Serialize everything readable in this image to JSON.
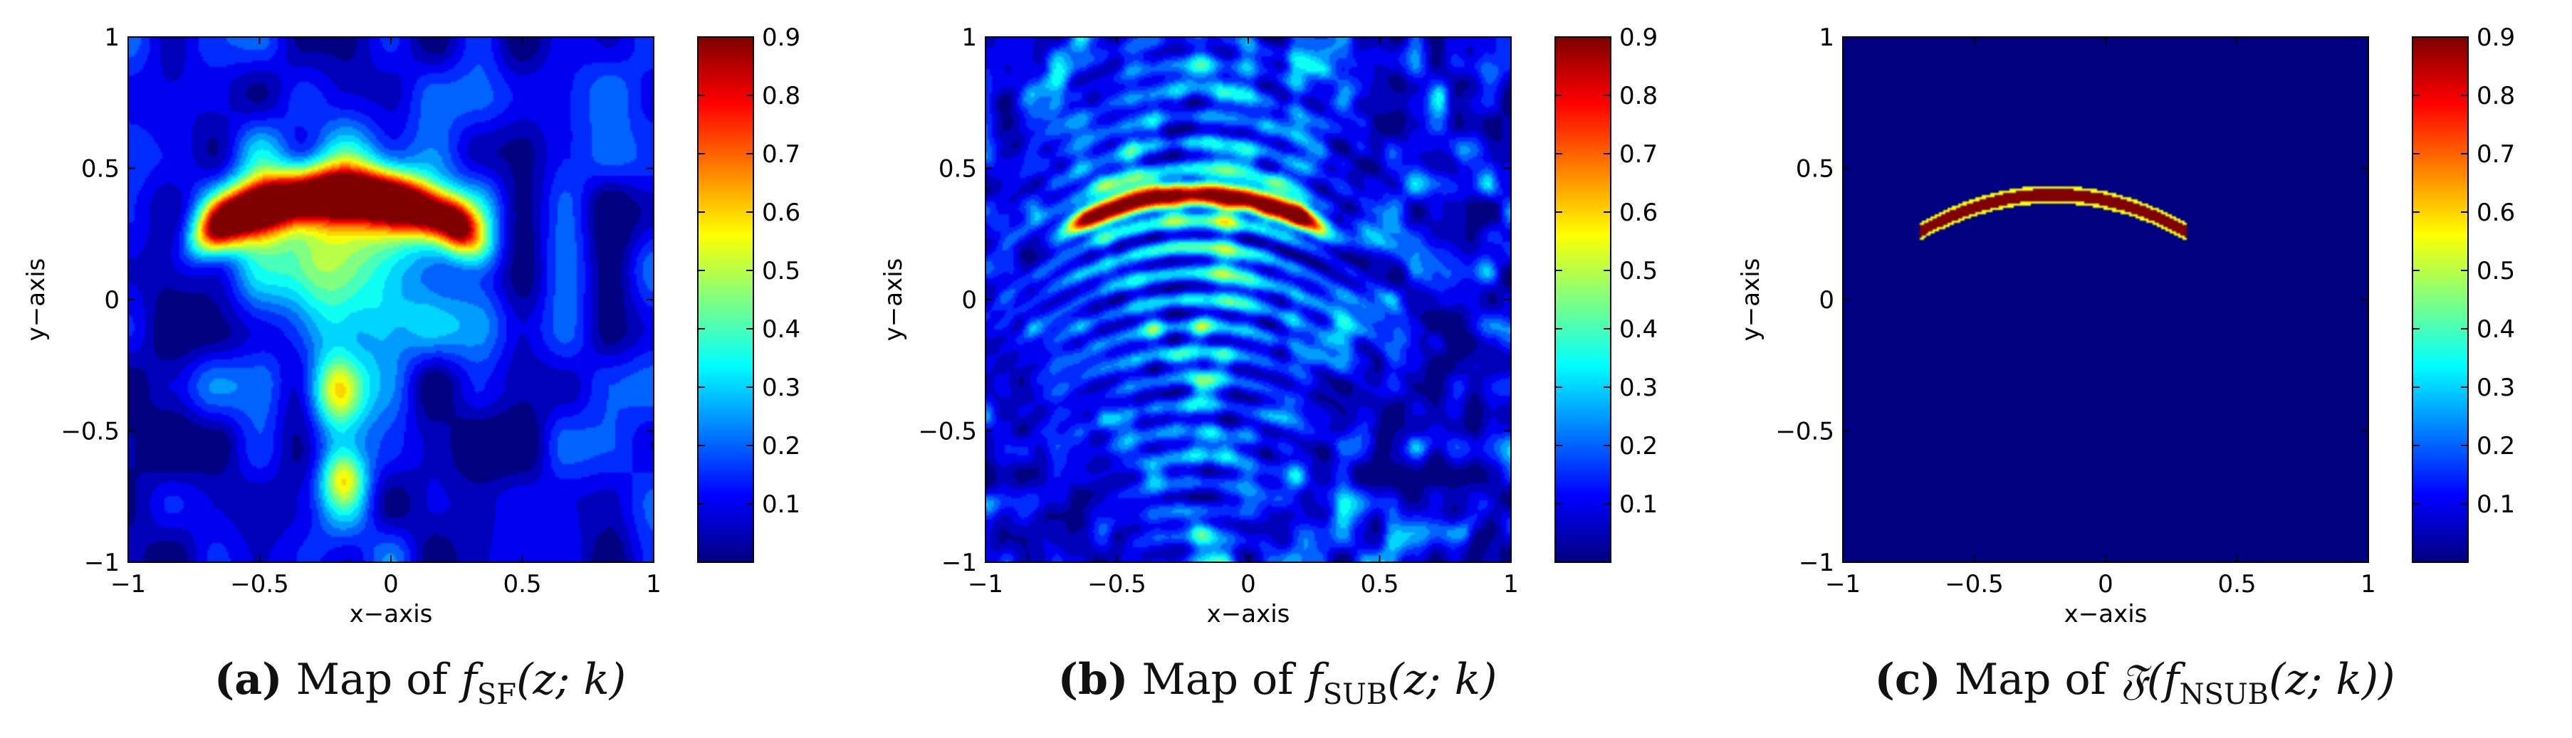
{
  "chart_data": [
    {
      "type": "heatmap",
      "panel_label": "(a)",
      "caption_prefix": "Map of",
      "caption_func": "f",
      "caption_sub": "SF",
      "caption_args": "(z; k)",
      "xlabel": "x−axis",
      "ylabel": "y−axis",
      "xlim": [
        -1,
        1
      ],
      "ylim": [
        -1,
        1
      ],
      "xticks": [
        -1,
        -0.5,
        0,
        0.5,
        1
      ],
      "yticks": [
        -1,
        -0.5,
        0,
        0.5,
        1
      ],
      "xtick_labels": [
        "−1",
        "−0.5",
        "0",
        "0.5",
        "1"
      ],
      "ytick_labels": [
        "−1",
        "−0.5",
        "0",
        "0.5",
        "1"
      ],
      "colorbar": {
        "range": [
          0,
          0.9
        ],
        "ticks": [
          0.1,
          0.2,
          0.3,
          0.4,
          0.5,
          0.6,
          0.7,
          0.8,
          0.9
        ],
        "colormap": "jet"
      },
      "peak_region": {
        "x_range": [
          -0.7,
          0.3
        ],
        "y_center": 0.35,
        "max_value": 0.9
      },
      "field": "broad"
    },
    {
      "type": "heatmap",
      "panel_label": "(b)",
      "caption_prefix": "Map of",
      "caption_func": "f",
      "caption_sub": "SUB",
      "caption_args": "(z; k)",
      "xlabel": "x−axis",
      "ylabel": "y−axis",
      "xlim": [
        -1,
        1
      ],
      "ylim": [
        -1,
        1
      ],
      "xticks": [
        -1,
        -0.5,
        0,
        0.5,
        1
      ],
      "yticks": [
        -1,
        -0.5,
        0,
        0.5,
        1
      ],
      "xtick_labels": [
        "−1",
        "−0.5",
        "0",
        "0.5",
        "1"
      ],
      "ytick_labels": [
        "−1",
        "−0.5",
        "0",
        "0.5",
        "1"
      ],
      "colorbar": {
        "range": [
          0,
          0.9
        ],
        "ticks": [
          0.1,
          0.2,
          0.3,
          0.4,
          0.5,
          0.6,
          0.7,
          0.8,
          0.9
        ],
        "colormap": "jet"
      },
      "peak_region": {
        "x_range": [
          -0.7,
          0.3
        ],
        "y_center": 0.35,
        "max_value": 0.9
      },
      "field": "fringes"
    },
    {
      "type": "heatmap",
      "panel_label": "(c)",
      "caption_prefix": "Map of",
      "caption_func": "𝔉(f",
      "caption_sub": "NSUB",
      "caption_args": "(z; k))",
      "xlabel": "x−axis",
      "ylabel": "y−axis",
      "xlim": [
        -1,
        1
      ],
      "ylim": [
        -1,
        1
      ],
      "xticks": [
        -1,
        -0.5,
        0,
        0.5,
        1
      ],
      "yticks": [
        -1,
        -0.5,
        0,
        0.5,
        1
      ],
      "xtick_labels": [
        "−1",
        "−0.5",
        "0",
        "0.5",
        "1"
      ],
      "ytick_labels": [
        "−1",
        "−0.5",
        "0",
        "0.5",
        "1"
      ],
      "colorbar": {
        "range": [
          0,
          0.9
        ],
        "ticks": [
          0.1,
          0.2,
          0.3,
          0.4,
          0.5,
          0.6,
          0.7,
          0.8,
          0.9
        ],
        "colormap": "jet"
      },
      "peak_region": {
        "x_range": [
          -0.7,
          0.3
        ],
        "y_center": 0.35,
        "max_value": 0.9
      },
      "field": "arc"
    }
  ]
}
